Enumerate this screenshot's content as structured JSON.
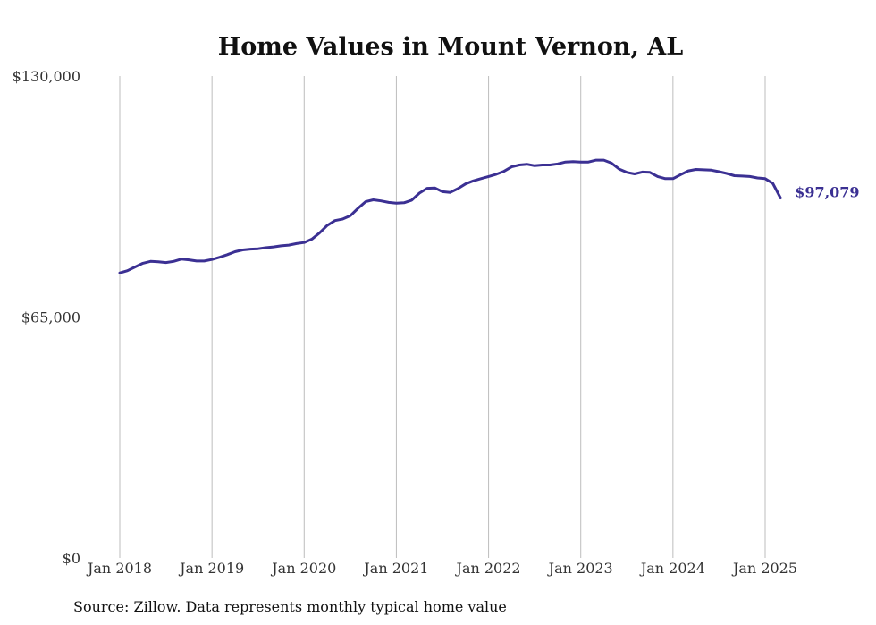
{
  "chart_data": {
    "type": "line",
    "title": "Home Values in Mount Vernon, AL",
    "source": "Source: Zillow. Data represents monthly typical home value",
    "ylim": [
      0,
      130000
    ],
    "yticks": [
      {
        "value": 0,
        "label": "$0"
      },
      {
        "value": 65000,
        "label": "$65,000"
      },
      {
        "value": 130000,
        "label": "$130,000"
      }
    ],
    "xticks": [
      {
        "value": "2018-01",
        "label": "Jan 2018"
      },
      {
        "value": "2019-01",
        "label": "Jan 2019"
      },
      {
        "value": "2020-01",
        "label": "Jan 2020"
      },
      {
        "value": "2021-01",
        "label": "Jan 2021"
      },
      {
        "value": "2022-01",
        "label": "Jan 2022"
      },
      {
        "value": "2023-01",
        "label": "Jan 2023"
      },
      {
        "value": "2024-01",
        "label": "Jan 2024"
      },
      {
        "value": "2025-01",
        "label": "Jan 2025"
      }
    ],
    "grid": "vertical",
    "line_color": "#3b3093",
    "end_label": "$97,079",
    "series": [
      {
        "x": [
          "2018-01",
          "2018-02",
          "2018-03",
          "2018-04",
          "2018-05",
          "2018-06",
          "2018-07",
          "2018-08",
          "2018-09",
          "2018-10",
          "2018-11",
          "2018-12",
          "2019-01",
          "2019-02",
          "2019-03",
          "2019-04",
          "2019-05",
          "2019-06",
          "2019-07",
          "2019-08",
          "2019-09",
          "2019-10",
          "2019-11",
          "2019-12",
          "2020-01",
          "2020-02",
          "2020-03",
          "2020-04",
          "2020-05",
          "2020-06",
          "2020-07",
          "2020-08",
          "2020-09",
          "2020-10",
          "2020-11",
          "2020-12",
          "2021-01",
          "2021-02",
          "2021-03",
          "2021-04",
          "2021-05",
          "2021-06",
          "2021-07",
          "2021-08",
          "2021-09",
          "2021-10",
          "2021-11",
          "2021-12",
          "2022-01",
          "2022-02",
          "2022-03",
          "2022-04",
          "2022-05",
          "2022-06",
          "2022-07",
          "2022-08",
          "2022-09",
          "2022-10",
          "2022-11",
          "2022-12",
          "2023-01",
          "2023-02",
          "2023-03",
          "2023-04",
          "2023-05",
          "2023-06",
          "2023-07",
          "2023-08",
          "2023-09",
          "2023-10",
          "2023-11",
          "2023-12",
          "2024-01",
          "2024-02",
          "2024-03",
          "2024-04",
          "2024-05",
          "2024-06",
          "2024-07",
          "2024-08",
          "2024-09",
          "2024-10",
          "2024-11",
          "2024-12",
          "2025-01",
          "2025-02",
          "2025-03"
        ],
        "values": [
          76900,
          77500,
          78500,
          79500,
          80000,
          79900,
          79700,
          80000,
          80600,
          80400,
          80100,
          80100,
          80500,
          81100,
          81800,
          82600,
          83100,
          83300,
          83400,
          83700,
          83900,
          84200,
          84400,
          84800,
          85100,
          86000,
          87700,
          89700,
          91000,
          91400,
          92300,
          94300,
          96100,
          96600,
          96300,
          95900,
          95700,
          95800,
          96500,
          98400,
          99700,
          99800,
          98800,
          98600,
          99600,
          100900,
          101700,
          102300,
          102900,
          103500,
          104300,
          105500,
          106000,
          106200,
          105800,
          106000,
          106000,
          106300,
          106800,
          106900,
          106800,
          106800,
          107300,
          107300,
          106500,
          104900,
          104000,
          103600,
          104100,
          104000,
          102900,
          102300,
          102300,
          103400,
          104400,
          104800,
          104700,
          104600,
          104200,
          103700,
          103100,
          103000,
          102900,
          102500,
          102300,
          101000,
          97079
        ]
      }
    ]
  }
}
